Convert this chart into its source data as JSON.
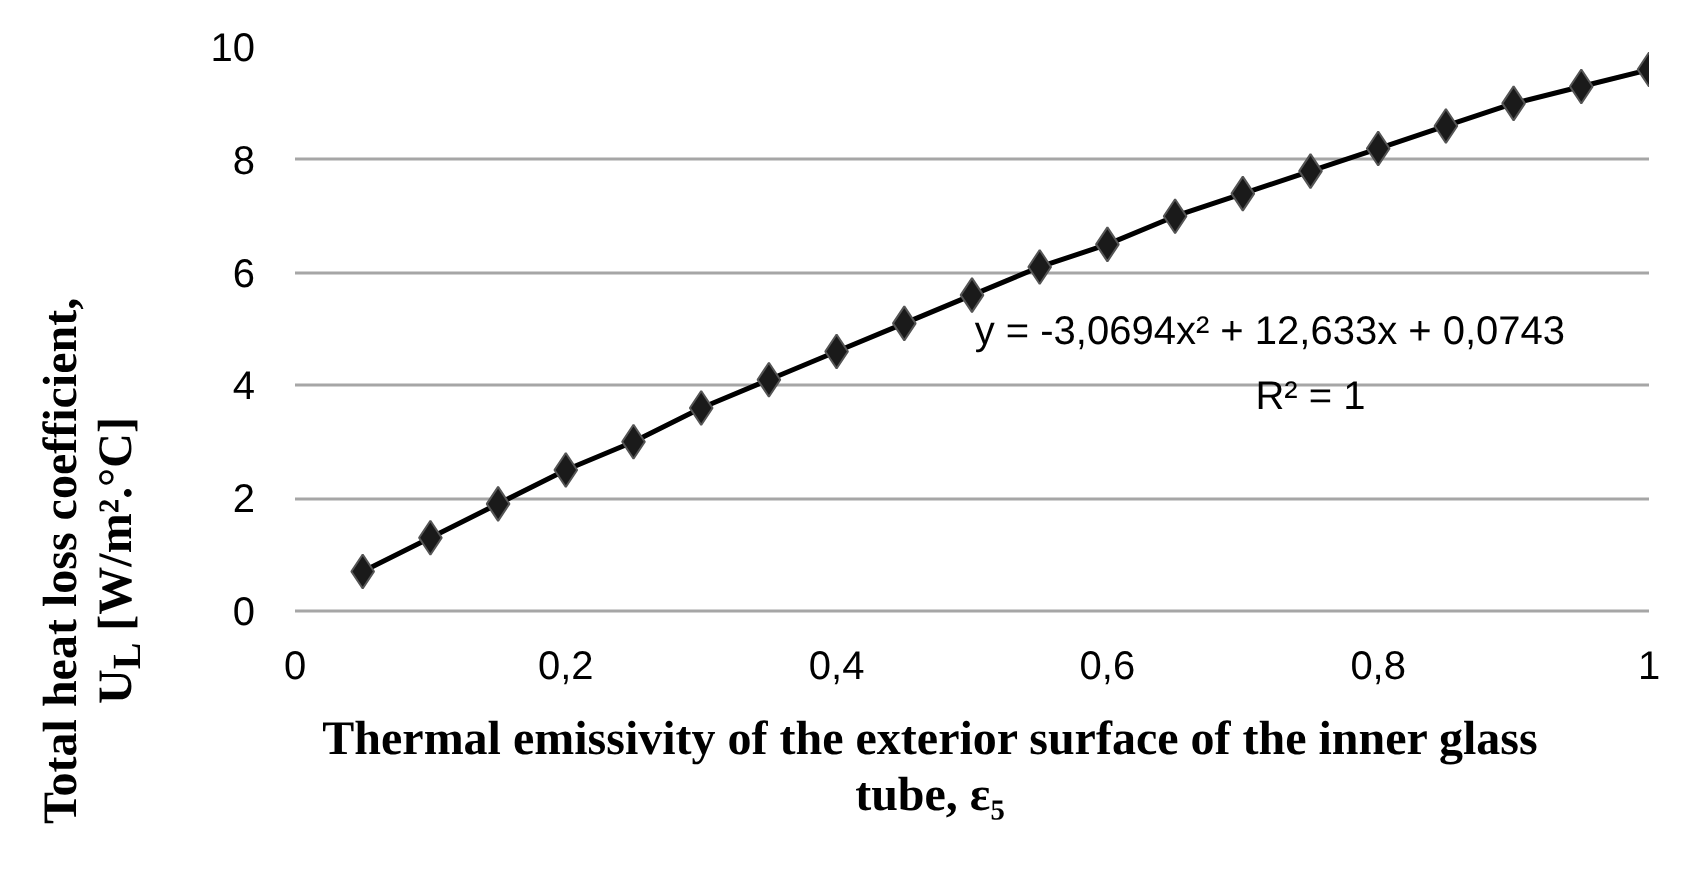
{
  "chart_data": {
    "type": "scatter",
    "xlabel": "Thermal emissivity of the exterior surface of the inner glass tube, ε₅",
    "ylabel": "Total heat loss coefficient, U$_{L}$ [W/m².°C]",
    "annotations": [
      "y = -3,0694x² + 12,633x + 0,0743",
      "R² = 1"
    ],
    "x": [
      0.05,
      0.1,
      0.15,
      0.2,
      0.25,
      0.3,
      0.35,
      0.4,
      0.45,
      0.5,
      0.55,
      0.6,
      0.65,
      0.7,
      0.75,
      0.8,
      0.85,
      0.9,
      0.95,
      1.0
    ],
    "marker": "diamond",
    "series": [
      {
        "type": "line",
        "color": "#000000",
        "marker": "none",
        "x": [
          0.05,
          0.1,
          0.15,
          0.2,
          0.25,
          0.3,
          0.35,
          0.4,
          0.45,
          0.5,
          0.55,
          0.6,
          0.65,
          0.7,
          0.75,
          0.8,
          0.85,
          0.9,
          0.95,
          1.0
        ],
        "values": [
          0.7,
          1.3,
          1.9,
          2.5,
          3.0,
          3.6,
          4.1,
          4.6,
          5.1,
          5.6,
          6.1,
          6.5,
          7.0,
          7.4,
          7.8,
          8.2,
          8.6,
          9.0,
          9.3,
          9.6
        ]
      },
      {
        "color": "#1a1a1a",
        "values": [
          0.7,
          1.3,
          1.9,
          2.5,
          3.0,
          3.6,
          4.1,
          4.6,
          5.1,
          5.6,
          6.1,
          6.5,
          7.0,
          7.4,
          7.8,
          8.2,
          8.6,
          9.0,
          9.3,
          9.6
        ]
      }
    ],
    "xlim": [
      0,
      1.0
    ],
    "xticks": [
      0,
      {
        "value": 0.2,
        "label": "0,2"
      },
      {
        "value": 0.4,
        "label": "0,4"
      },
      {
        "value": 0.6,
        "label": "0,6"
      },
      {
        "value": 0.8,
        "label": "0,8"
      },
      1
    ],
    "ylim": [
      0,
      10
    ],
    "yticks": [
      0,
      2,
      4,
      6,
      8,
      10
    ],
    "grid": "y"
  }
}
